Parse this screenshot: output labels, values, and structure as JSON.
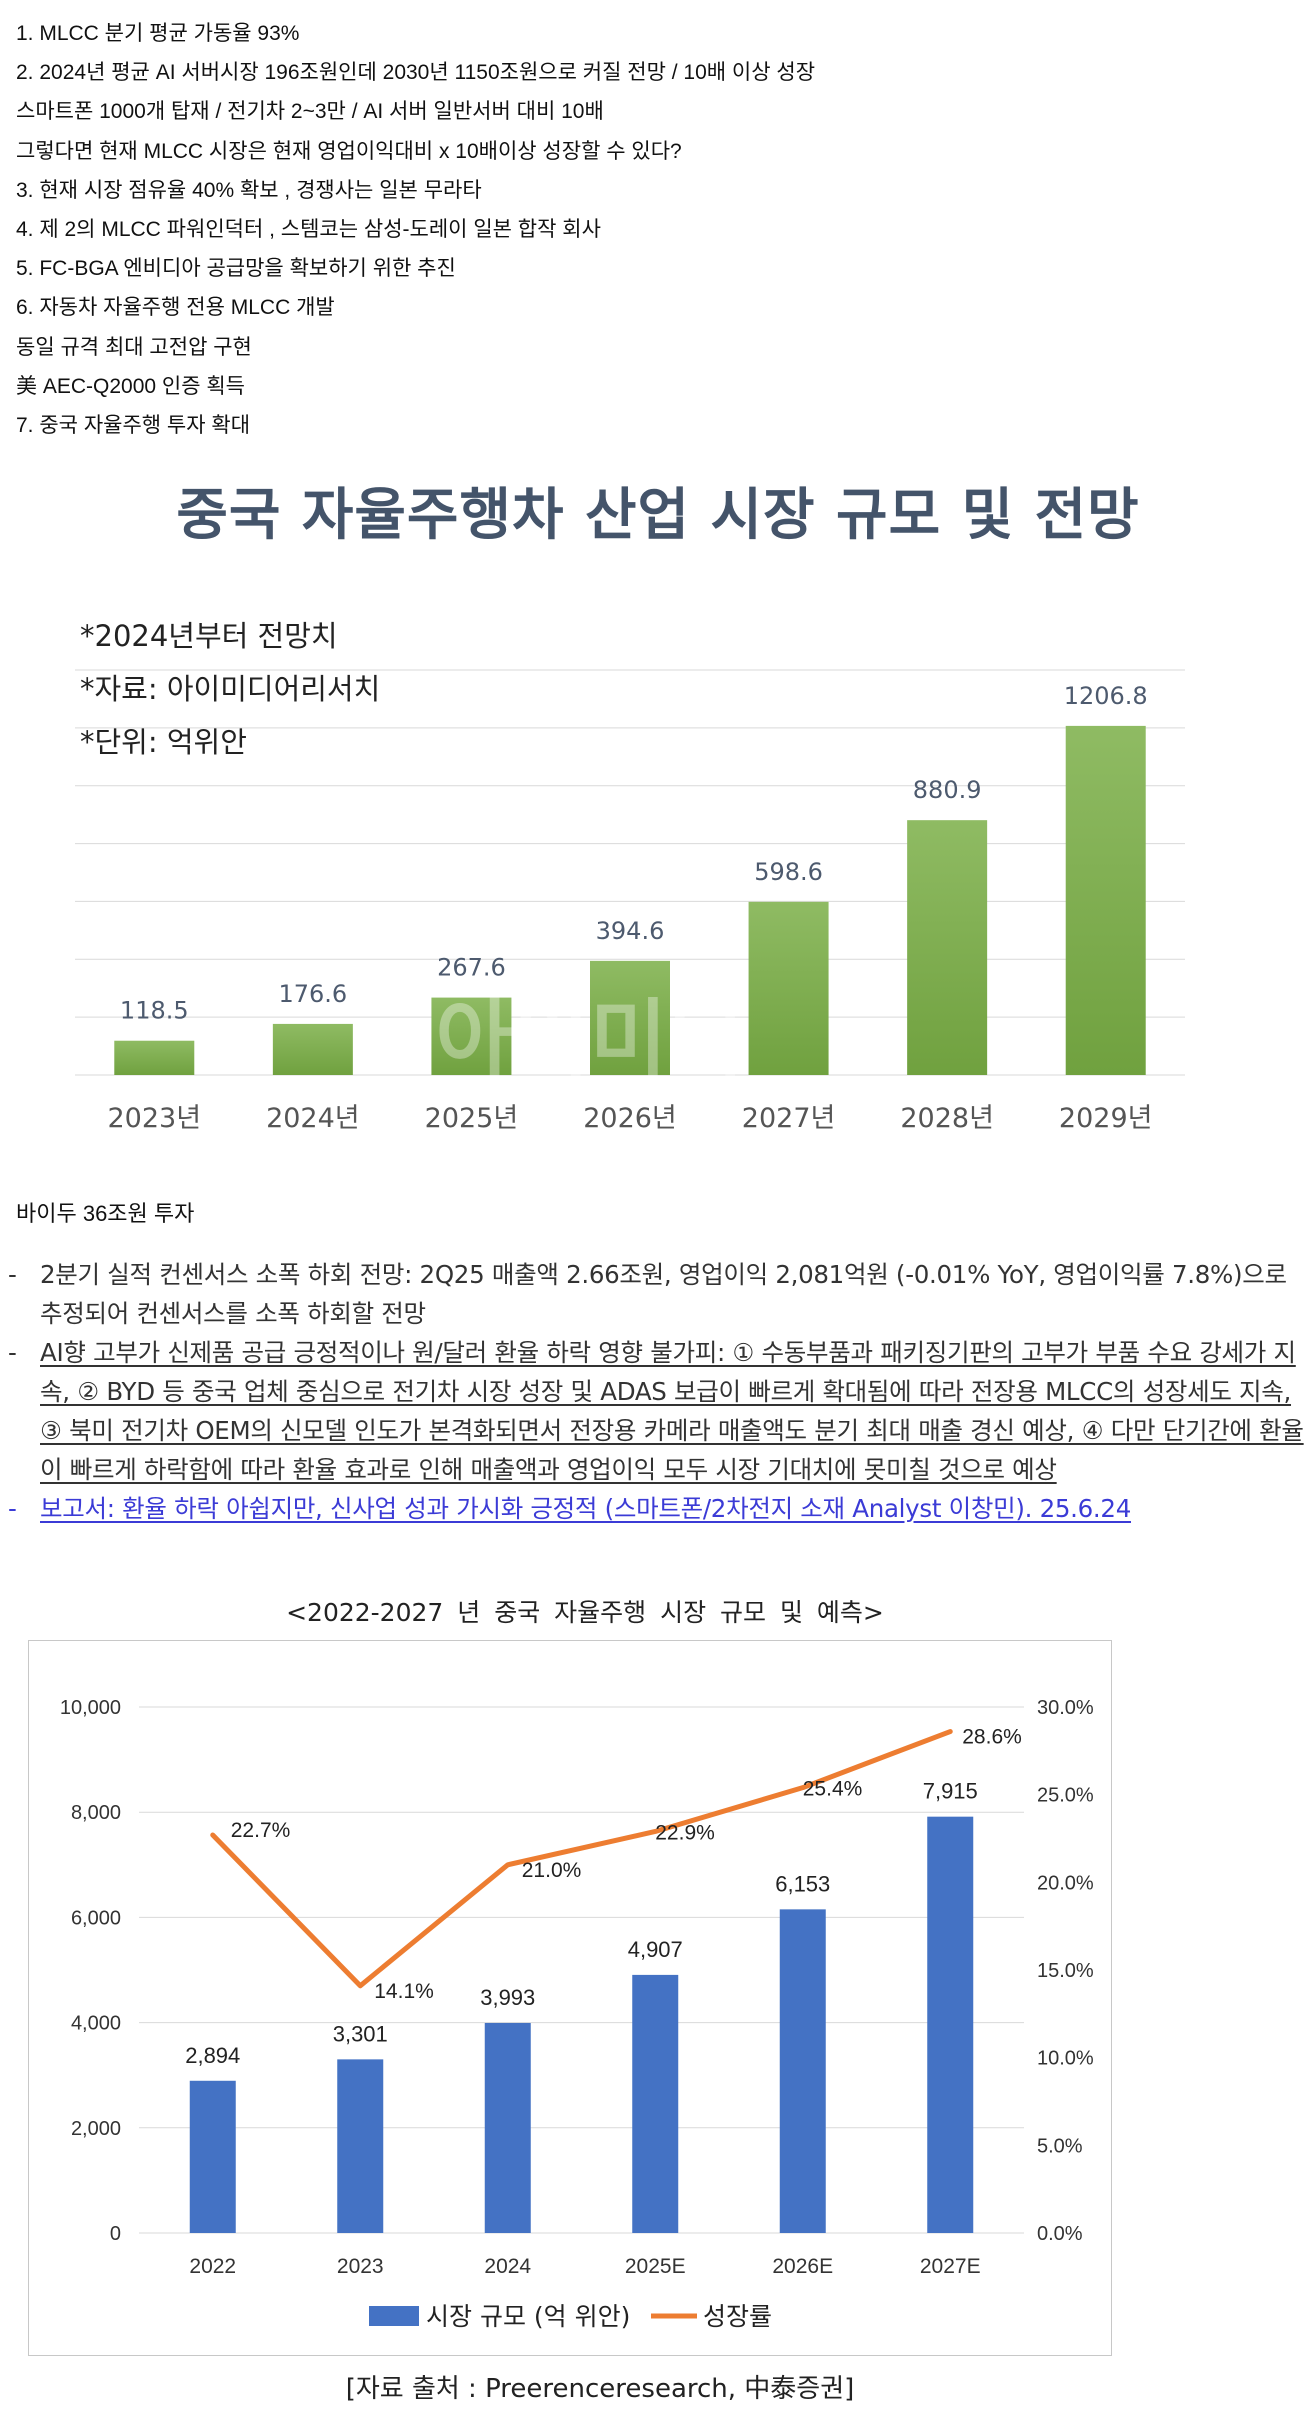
{
  "notes": [
    "1. MLCC 분기 평균 가동율 93%",
    "2. 2024년 평균 AI 서버시장 196조원인데 2030년 1150조원으로 커질 전망 / 10배 이상 성장",
    "스마트폰 1000개 탑재 / 전기차 2~3만 / AI 서버 일반서버 대비 10배",
    "그렇다면 현재 MLCC 시장은 현재 영업이익대비 x 10배이상 성장할 수 있다?",
    "3. 현재 시장 점유율 40% 확보 , 경쟁사는 일본 무라타",
    "4. 제 2의 MLCC 파워인덕터 , 스템코는 삼성-도레이 일본 합작 회사",
    "5. FC-BGA 엔비디아 공급망을 확보하기 위한 추진",
    "6. 자동차 자율주행 전용 MLCC 개발",
    "동일 규격 최대 고전압 구현",
    "美 AEC-Q2000 인증 획득",
    "7. 중국 자율주행 투자 확대"
  ],
  "chart1": {
    "title": "중국 자율주행차 산업 시장 규모 및 전망",
    "notes": [
      "*2024년부터 전망치",
      "*자료: 아이미디어리서치",
      "*단위: 억위안"
    ],
    "watermark": "아이미디",
    "colors": {
      "bar_top": "#8fbb63",
      "bar_bottom": "#70a13f",
      "label": "#4d5a6e"
    }
  },
  "baidu": "바이두 36조원 투자",
  "report": {
    "bullets": [
      {
        "style": "plain",
        "dash": "-",
        "text": "2분기 실적 컨센서스 소폭 하회 전망: 2Q25 매출액 2.66조원, 영업이익 2,081억원 (-0.01% YoY, 영업이익률 7.8%)으로 추정되어 컨센서스를 소폭 하회할 전망"
      },
      {
        "style": "underline",
        "dash": "-",
        "text": "AI향 고부가 신제품 공급 긍정적이나 원/달러 환율 하락 영향 불가피: ① 수동부품과 패키징기판의 고부가 부품 수요 강세가 지속, ② BYD 등 중국 업체 중심으로 전기차 시장 성장 및 ADAS 보급이 빠르게 확대됨에 따라 전장용 MLCC의 성장세도 지속, ③ 북미 전기차 OEM의 신모델 인도가 본격화되면서 전장용 카메라 매출액도 분기 최대 매출 경신 예상, ④ 다만 단기간에 환율이 빠르게 하락함에 따라 환율 효과로 인해 매출액과 영업이익 모두 시장 기대치에 못미칠 것으로 예상"
      },
      {
        "style": "link",
        "dash": "-",
        "text": "보고서: 환율 하락 아쉽지만, 신사업 성과 가시화 긍정적 (스마트폰/2차전지 소재 Analyst 이창민). 25.6.24"
      }
    ]
  },
  "chart2": {
    "caption": "<2022-2027 년 중국 자율주행 시장 규모 및 예측>",
    "source": "[자료 출처 : Preerenceresearch, 中泰증권]",
    "legend": {
      "bar": "시장 규모 (억 위안)",
      "line": "성장률"
    },
    "colors": {
      "bar": "#4472c4",
      "line": "#ed7d31"
    }
  },
  "chart_data": [
    {
      "type": "bar",
      "title": "중국 자율주행차 산업 시장 규모 및 전망",
      "categories": [
        "2023년",
        "2024년",
        "2025년",
        "2026년",
        "2027년",
        "2028년",
        "2029년"
      ],
      "values": [
        118.5,
        176.6,
        267.6,
        394.6,
        598.6,
        880.9,
        1206.8
      ],
      "value_labels": [
        "118.5",
        "176.6",
        "267.6",
        "394.6",
        "598.6",
        "880.9",
        "1206.8"
      ],
      "unit": "억위안",
      "ylim": [
        0,
        1400
      ],
      "grid": true
    },
    {
      "type": "bar",
      "title": "<2022-2027 년 중국 자율주행 시장 규모 및 예측>",
      "categories": [
        "2022",
        "2023",
        "2024",
        "2025E",
        "2026E",
        "2027E"
      ],
      "series": [
        {
          "name": "시장 규모 (억 위안)",
          "kind": "bar",
          "axis": "left",
          "values": [
            2894,
            3301,
            3993,
            4907,
            6153,
            7915
          ],
          "value_labels": [
            "2,894",
            "3,301",
            "3,993",
            "4,907",
            "6,153",
            "7,915"
          ]
        },
        {
          "name": "성장률",
          "kind": "line",
          "axis": "right",
          "values": [
            22.7,
            14.1,
            21.0,
            22.9,
            25.4,
            28.6
          ],
          "value_labels": [
            "22.7%",
            "14.1%",
            "21.0%",
            "22.9%",
            "25.4%",
            "28.6%"
          ]
        }
      ],
      "ylim_left": [
        0,
        10000
      ],
      "yticks_left": [
        "0",
        "2,000",
        "4,000",
        "6,000",
        "8,000",
        "10,000"
      ],
      "ylim_right": [
        0,
        30
      ],
      "yticks_right": [
        "0.0%",
        "5.0%",
        "10.0%",
        "15.0%",
        "20.0%",
        "25.0%",
        "30.0%"
      ],
      "legend": "bottom",
      "grid": true
    }
  ]
}
